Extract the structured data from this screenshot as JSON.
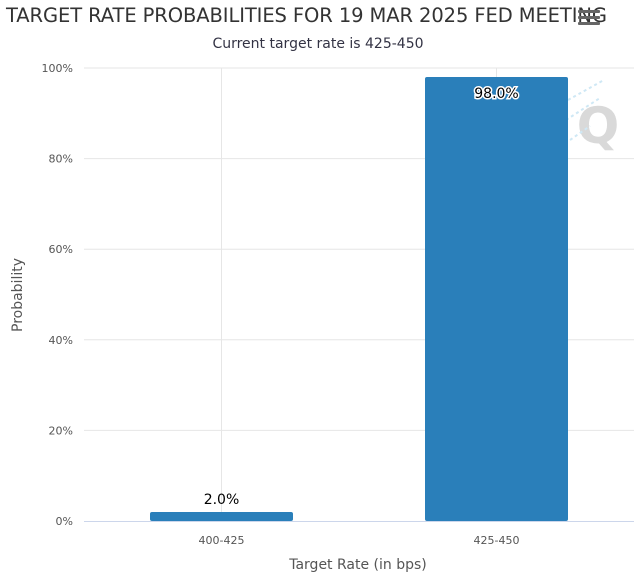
{
  "header": {
    "title": "TARGET RATE PROBABILITIES FOR 19 MAR 2025 FED MEETING",
    "subtitle": "Current target rate is 425-450",
    "menu_icon": "hamburger-menu-icon"
  },
  "watermark": {
    "icon": "q-logo-watermark-icon",
    "letter": "Q"
  },
  "colors": {
    "bar": "#2a7fba",
    "grid": "#e6e6e6"
  },
  "chart_data": {
    "type": "bar",
    "title": "TARGET RATE PROBABILITIES FOR 19 MAR 2025 FED MEETING",
    "subtitle": "Current target rate is 425-450",
    "categories": [
      "400-425",
      "425-450"
    ],
    "values": [
      2.0,
      98.0
    ],
    "data_labels": [
      "2.0%",
      "98.0%"
    ],
    "xlabel": "Target Rate (in bps)",
    "ylabel": "Probability",
    "ylim": [
      0,
      100
    ],
    "yticks": [
      0,
      20,
      40,
      60,
      80,
      100
    ],
    "ytick_labels": [
      "0%",
      "20%",
      "40%",
      "60%",
      "80%",
      "100%"
    ],
    "grid": true,
    "legend": false
  }
}
